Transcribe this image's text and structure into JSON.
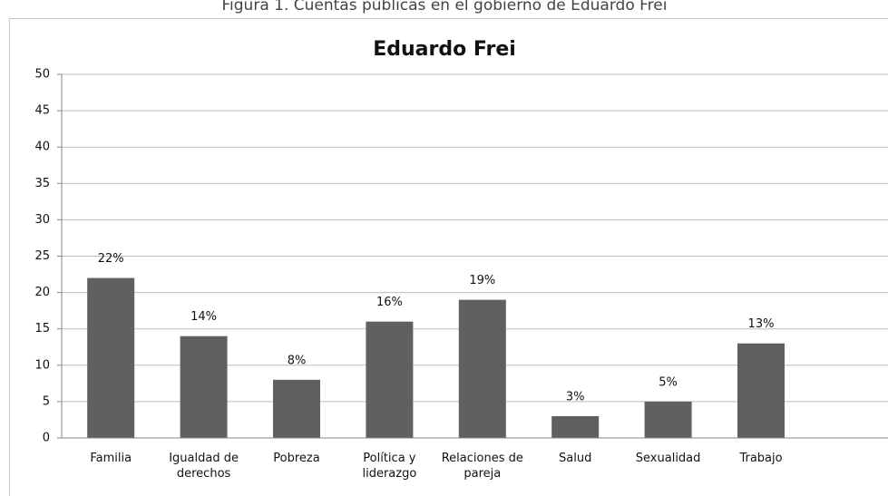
{
  "caption": "Figura 1. Cuentas públicas en el gobierno de Eduardo Frei",
  "chart_data": {
    "type": "bar",
    "title": "Eduardo Frei",
    "categories": [
      "Familia",
      "Igualdad de derechos",
      "Pobreza",
      "Política y liderazgo",
      "Relaciones de pareja",
      "Salud",
      "Sexualidad",
      "Trabajo"
    ],
    "values": [
      22,
      14,
      8,
      16,
      19,
      3,
      5,
      13
    ],
    "value_labels": [
      "22%",
      "14%",
      "8%",
      "16%",
      "19%",
      "3%",
      "5%",
      "13%"
    ],
    "color": "#606060",
    "ylim": [
      0,
      50
    ],
    "yticks": [
      0,
      5,
      10,
      15,
      20,
      25,
      30,
      35,
      40,
      45,
      50
    ],
    "grid": true
  }
}
